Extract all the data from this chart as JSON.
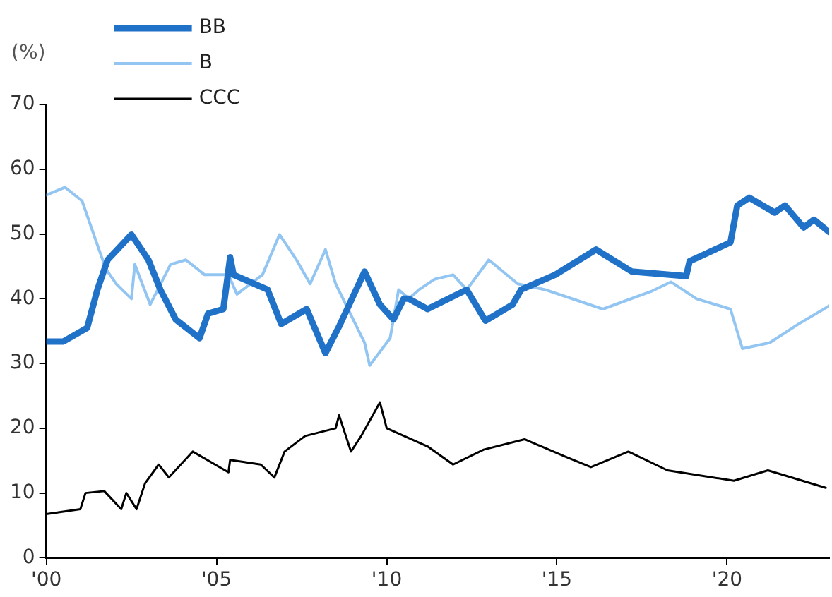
{
  "chart_data": {
    "type": "line",
    "ylabel": "(%)",
    "xlim": [
      2000,
      2023
    ],
    "xticks": [
      {
        "value": 2000,
        "label": "'00"
      },
      {
        "value": 2005,
        "label": "'05"
      },
      {
        "value": 2010,
        "label": "'10"
      },
      {
        "value": 2015,
        "label": "'15"
      },
      {
        "value": 2020,
        "label": "'20"
      }
    ],
    "ylim": [
      0,
      70
    ],
    "yticks": [
      0,
      10,
      20,
      30,
      40,
      50,
      60,
      70
    ],
    "grid": false,
    "legend": "top left",
    "marker": "none",
    "line_style": "solid",
    "series": [
      {
        "name": "BB",
        "color": "#1f72c8",
        "x": [
          2000.0,
          2000.5,
          2001.2,
          2001.5,
          2001.8,
          2002.5,
          2003.0,
          2003.35,
          2003.8,
          2004.5,
          2004.75,
          2005.2,
          2005.4,
          2005.5,
          2006.5,
          2006.9,
          2007.65,
          2008.2,
          2008.6,
          2009.35,
          2009.8,
          2010.2,
          2010.5,
          2010.65,
          2011.2,
          2012.35,
          2012.9,
          2013.7,
          2013.95,
          2014.95,
          2016.15,
          2017.2,
          2018.8,
          2018.9,
          2020.1,
          2020.3,
          2020.65,
          2021.4,
          2021.7,
          2022.25,
          2022.55,
          2023.0
        ],
        "values": [
          33.4,
          33.4,
          35.5,
          41.4,
          46,
          49.9,
          46,
          41.4,
          36.8,
          33.9,
          37.7,
          38.4,
          46.4,
          43.7,
          41.4,
          36.1,
          38.4,
          31.6,
          35.7,
          44.2,
          39.1,
          36.8,
          40,
          40,
          38.4,
          41.4,
          36.6,
          39.1,
          41.4,
          43.7,
          47.6,
          44.2,
          43.5,
          45.8,
          48.7,
          54.4,
          55.6,
          53.3,
          54.4,
          51,
          52.2,
          50.3
        ]
      },
      {
        "name": "B",
        "color": "#92c5f2",
        "x": [
          2000.0,
          2000.55,
          2001.05,
          2001.5,
          2001.75,
          2002.05,
          2002.5,
          2002.6,
          2003.05,
          2003.65,
          2004.1,
          2004.65,
          2005.35,
          2005.6,
          2006.35,
          2006.85,
          2007.35,
          2007.75,
          2008.2,
          2008.5,
          2009.35,
          2009.5,
          2010.1,
          2010.35,
          2010.65,
          2010.95,
          2011.4,
          2011.95,
          2012.35,
          2013.0,
          2013.85,
          2014.65,
          2016.35,
          2017.8,
          2018.35,
          2019.1,
          2020.1,
          2020.45,
          2021.25,
          2022.1,
          2023.0
        ],
        "values": [
          56,
          57.2,
          55.1,
          48.3,
          44.6,
          42.3,
          40,
          45.3,
          39.1,
          45.3,
          46,
          43.7,
          43.7,
          40.7,
          43.7,
          49.9,
          46,
          42.3,
          47.6,
          42.3,
          33.2,
          29.7,
          33.9,
          41.4,
          40,
          41.4,
          43,
          43.7,
          41.4,
          46,
          42.3,
          41.4,
          38.4,
          41.2,
          42.6,
          40,
          38.4,
          32.3,
          33.2,
          36.1,
          38.9
        ]
      },
      {
        "name": "CCC",
        "color": "#000000",
        "x": [
          2000.0,
          2001.0,
          2001.15,
          2001.7,
          2002.2,
          2002.35,
          2002.65,
          2002.9,
          2003.3,
          2003.6,
          2004.3,
          2005.35,
          2005.4,
          2006.3,
          2006.7,
          2007.0,
          2007.6,
          2008.5,
          2008.6,
          2008.95,
          2009.25,
          2009.8,
          2010.0,
          2011.2,
          2011.95,
          2012.85,
          2014.05,
          2015.25,
          2016.0,
          2017.1,
          2018.25,
          2020.2,
          2021.2,
          2022.9
        ],
        "values": [
          6.75,
          7.5,
          10,
          10.3,
          7.5,
          10,
          7.5,
          11.5,
          14.4,
          12.4,
          16.4,
          13.2,
          15.1,
          14.4,
          12.4,
          16.4,
          18.8,
          20,
          22,
          16.4,
          18.8,
          24,
          20,
          17.2,
          14.4,
          16.7,
          18.3,
          15.6,
          14,
          16.4,
          13.5,
          11.9,
          13.5,
          10.8
        ]
      }
    ]
  }
}
